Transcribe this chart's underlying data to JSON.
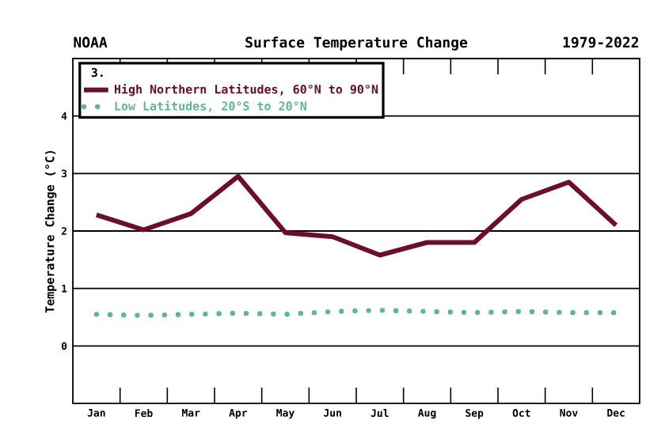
{
  "chart_data": {
    "type": "line",
    "title": "Surface Temperature Change",
    "ylabel": "Temperature Change (°C)",
    "legend_title": "3.",
    "annotations": [
      "NOAA",
      "1979-2022"
    ],
    "categories": [
      "Jan",
      "Feb",
      "Mar",
      "Apr",
      "May",
      "Jun",
      "Jul",
      "Aug",
      "Sep",
      "Oct",
      "Nov",
      "Dec"
    ],
    "series": [
      {
        "name": "High Northern Latitudes, 60°N to 90°N",
        "color": "#6b0f2a",
        "line_style": "solid",
        "values": [
          2.28,
          2.02,
          2.3,
          2.95,
          1.97,
          1.9,
          1.58,
          1.8,
          1.8,
          2.55,
          2.85,
          2.1
        ]
      },
      {
        "name": "Low Latitudes, 20°S to 20°N",
        "color": "#5cb88f",
        "line_style": "dotted",
        "values": [
          0.55,
          0.53,
          0.55,
          0.57,
          0.55,
          0.6,
          0.62,
          0.6,
          0.58,
          0.6,
          0.58,
          0.58
        ]
      }
    ],
    "ylim": [
      -1,
      5
    ],
    "yticks": [
      0,
      1,
      2,
      3,
      4
    ],
    "grid": "y",
    "legend": "top left",
    "marker": "none"
  }
}
